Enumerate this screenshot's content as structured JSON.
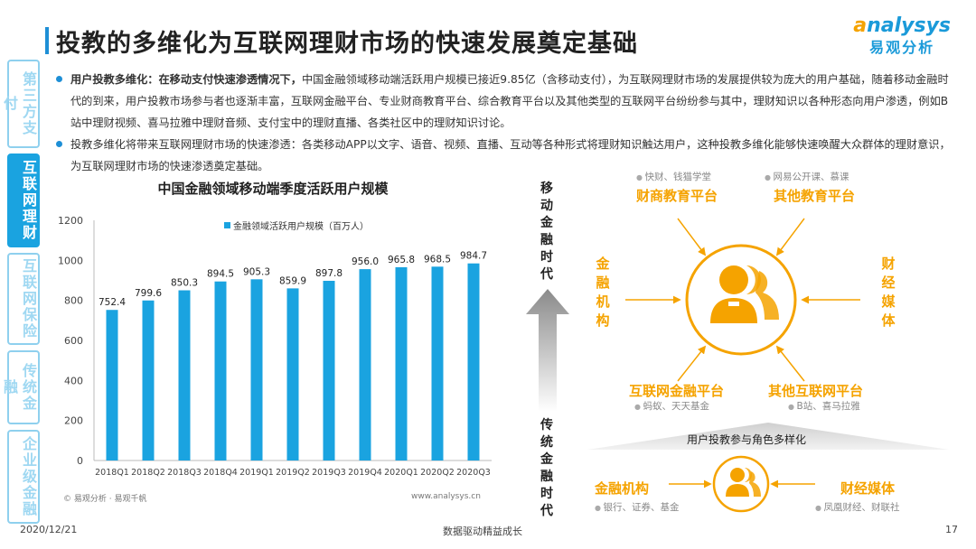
{
  "title": "投教的多维化为互联网理财市场的快速发展奠定基础",
  "logo": {
    "word_a": "a",
    "word_rest": "nalysys",
    "sub": "易观分析"
  },
  "side_tabs": [
    {
      "label": "第三方支付",
      "active": false
    },
    {
      "label": "互联网理财",
      "active": true
    },
    {
      "label": "互联网保险",
      "active": false
    },
    {
      "label": "传统金融",
      "active": false
    },
    {
      "label": "企业级金融",
      "active": false
    }
  ],
  "bullets": [
    {
      "bold": "用户投教多维化：在移动支付快速渗透情况下，",
      "text": "中国金融领域移动端活跃用户规模已接近9.85亿（含移动支付），为互联网理财市场的发展提供较为庞大的用户基础，随着移动金融时代的到来，用户投教市场参与者也逐渐丰富，互联网金融平台、专业财商教育平台、综合教育平台以及其他类型的互联网平台纷纷参与其中，理财知识以各种形态向用户渗透，例如B站中理财视频、喜马拉雅中理财音频、支付宝中的理财直播、各类社区中的理财知识讨论。"
    },
    {
      "bold": "",
      "text": "投教多维化将带来互联网理财市场的快速渗透：各类移动APP以文字、语音、视频、直播、互动等各种形式将理财知识触达用户，这种投教多维化能够快速唤醒大众群体的理财意识，为互联网理财市场的快速渗透奠定基础。"
    }
  ],
  "chart_data": {
    "type": "bar",
    "title": "中国金融领域移动端季度活跃用户规模",
    "legend": "金融领域活跃用户规模（百万人）",
    "categories": [
      "2018Q1",
      "2018Q2",
      "2018Q3",
      "2018Q4",
      "2019Q1",
      "2019Q2",
      "2019Q3",
      "2019Q4",
      "2020Q1",
      "2020Q2",
      "2020Q3"
    ],
    "values": [
      752.4,
      799.6,
      850.3,
      894.5,
      905.3,
      859.9,
      897.8,
      956.0,
      965.8,
      968.5,
      984.7
    ],
    "value_labels": [
      "752.4",
      "799.6",
      "850.3",
      "894.5",
      "905.3",
      "859.9",
      "897.8",
      "956.0",
      "965.8",
      "968.5",
      "984.7"
    ],
    "ylim": [
      0,
      1200
    ],
    "yticks": [
      0,
      200,
      400,
      600,
      800,
      1000,
      1200
    ],
    "bar_color": "#1aa3e0",
    "source": "© 易观分析 · 易观千帆",
    "url": "www.analysys.cn"
  },
  "timeline": {
    "top": "移动金融时代",
    "bottom": "传统金融时代"
  },
  "diagram": {
    "top_left_head": "财商教育平台",
    "top_left_note": "快财、钱猫学堂",
    "top_right_head": "其他教育平台",
    "top_right_note": "网易公开课、慕课",
    "left_vert": "金融机构",
    "right_vert": "财经媒体",
    "bottom_left_head": "互联网金融平台",
    "bottom_left_note": "蚂蚁、天天基金",
    "bottom_right_head": "其他互联网平台",
    "bottom_right_note": "B站、喜马拉雅",
    "banner": "用户投教参与角色多样化",
    "low_left_head": "金融机构",
    "low_left_note": "银行、证券、基金",
    "low_right_head": "财经媒体",
    "low_right_note": "凤凰财经、财联社",
    "accent": "#f5a300"
  },
  "footer": {
    "date": "2020/12/21",
    "slogan": "数据驱动精益成长",
    "page": "17"
  }
}
